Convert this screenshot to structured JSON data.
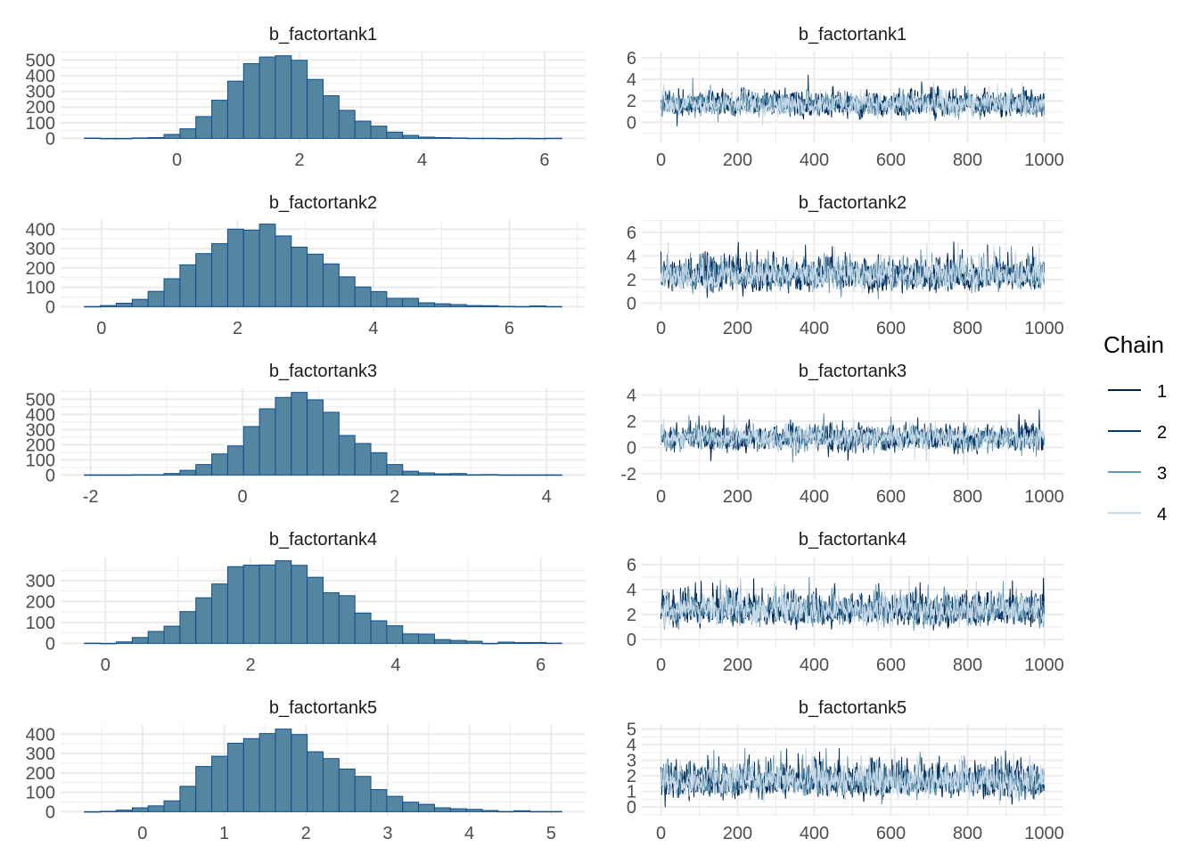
{
  "colors": {
    "hist_fill": "#5485a1",
    "hist_outline": "#0d4f8f",
    "grid": "#ebebeb",
    "chains": [
      "#011f4b",
      "#03396c",
      "#6497b1",
      "#c8dae8"
    ]
  },
  "legend": {
    "title": "Chain",
    "labels": [
      "1",
      "2",
      "3",
      "4"
    ],
    "placement": "right"
  },
  "chart_data": [
    {
      "type": "bar",
      "subtype": "histogram",
      "title": "b_factortank1",
      "bin_range": [
        -1.51,
        6.28
      ],
      "counts": [
        2,
        0,
        0,
        3,
        5,
        25,
        61,
        139,
        243,
        365,
        477,
        519,
        527,
        498,
        376,
        272,
        179,
        110,
        78,
        40,
        19,
        8,
        5,
        3,
        1,
        1,
        0,
        1,
        0,
        1
      ],
      "xticks": [
        0,
        2,
        4,
        6
      ],
      "yticks": [
        0,
        100,
        200,
        300,
        400,
        500
      ],
      "grid": true
    },
    {
      "type": "line",
      "subtype": "trace",
      "title": "b_factortank1",
      "xlim": [
        0,
        1000
      ],
      "ylim": [
        -1.5,
        6.2
      ],
      "xticks": [
        0,
        200,
        400,
        600,
        800,
        1000
      ],
      "yticks": [
        0,
        2,
        4,
        6
      ],
      "grid": true
    },
    {
      "type": "bar",
      "subtype": "histogram",
      "title": "b_factortank2",
      "bin_range": [
        -0.25,
        6.77
      ],
      "counts": [
        1,
        6,
        18,
        38,
        79,
        144,
        216,
        274,
        325,
        400,
        395,
        426,
        365,
        307,
        271,
        221,
        154,
        102,
        78,
        43,
        43,
        20,
        15,
        11,
        6,
        5,
        2,
        1,
        4,
        1
      ],
      "xticks": [
        0,
        2,
        4,
        6
      ],
      "yticks": [
        0,
        100,
        200,
        300,
        400
      ],
      "grid": true
    },
    {
      "type": "line",
      "subtype": "trace",
      "title": "b_factortank2",
      "xlim": [
        0,
        1000
      ],
      "ylim": [
        -0.3,
        6.7
      ],
      "xticks": [
        0,
        200,
        400,
        600,
        800,
        1000
      ],
      "yticks": [
        0,
        2,
        4,
        6
      ],
      "grid": true
    },
    {
      "type": "bar",
      "subtype": "histogram",
      "title": "b_factortank3",
      "bin_range": [
        -2.08,
        4.2
      ],
      "counts": [
        1,
        1,
        1,
        2,
        2,
        10,
        31,
        69,
        139,
        192,
        320,
        437,
        512,
        545,
        496,
        414,
        261,
        208,
        147,
        69,
        25,
        14,
        8,
        10,
        2,
        3,
        1,
        1,
        1,
        1
      ],
      "xticks": [
        -2,
        0,
        2,
        4
      ],
      "yticks": [
        0,
        100,
        200,
        300,
        400,
        500
      ],
      "grid": true
    },
    {
      "type": "line",
      "subtype": "trace",
      "title": "b_factortank3",
      "xlim": [
        0,
        1000
      ],
      "ylim": [
        -2.1,
        4.2
      ],
      "xticks": [
        0,
        200,
        400,
        600,
        800,
        1000
      ],
      "yticks": [
        -2,
        0,
        2,
        4
      ],
      "grid": true
    },
    {
      "type": "bar",
      "subtype": "histogram",
      "title": "b_factortank4",
      "bin_range": [
        -0.29,
        6.29
      ],
      "counts": [
        1,
        0,
        7,
        28,
        57,
        82,
        152,
        218,
        284,
        367,
        374,
        375,
        395,
        373,
        316,
        242,
        228,
        145,
        108,
        84,
        45,
        44,
        18,
        14,
        10,
        0,
        6,
        4,
        4,
        1
      ],
      "xticks": [
        0,
        2,
        4,
        6
      ],
      "yticks": [
        0,
        100,
        200,
        300
      ],
      "grid": true
    },
    {
      "type": "line",
      "subtype": "trace",
      "title": "b_factortank4",
      "xlim": [
        0,
        1000
      ],
      "ylim": [
        -0.3,
        6.3
      ],
      "xticks": [
        0,
        200,
        400,
        600,
        800,
        1000
      ],
      "yticks": [
        0,
        2,
        4,
        6
      ],
      "grid": true
    },
    {
      "type": "bar",
      "subtype": "histogram",
      "title": "b_factortank5",
      "bin_range": [
        -0.71,
        5.13
      ],
      "counts": [
        0,
        2,
        8,
        20,
        30,
        56,
        131,
        233,
        286,
        353,
        377,
        403,
        426,
        398,
        309,
        274,
        220,
        182,
        114,
        79,
        49,
        38,
        20,
        15,
        12,
        6,
        1,
        5,
        1,
        1
      ],
      "xticks": [
        0,
        1,
        2,
        3,
        4,
        5
      ],
      "yticks": [
        0,
        100,
        200,
        300,
        400
      ],
      "grid": true
    },
    {
      "type": "line",
      "subtype": "trace",
      "title": "b_factortank5",
      "xlim": [
        0,
        1000
      ],
      "ylim": [
        -0.3,
        5.0
      ],
      "xticks": [
        0,
        200,
        400,
        600,
        800,
        1000
      ],
      "yticks": [
        0,
        1,
        2,
        3,
        4,
        5
      ],
      "grid": true
    }
  ]
}
